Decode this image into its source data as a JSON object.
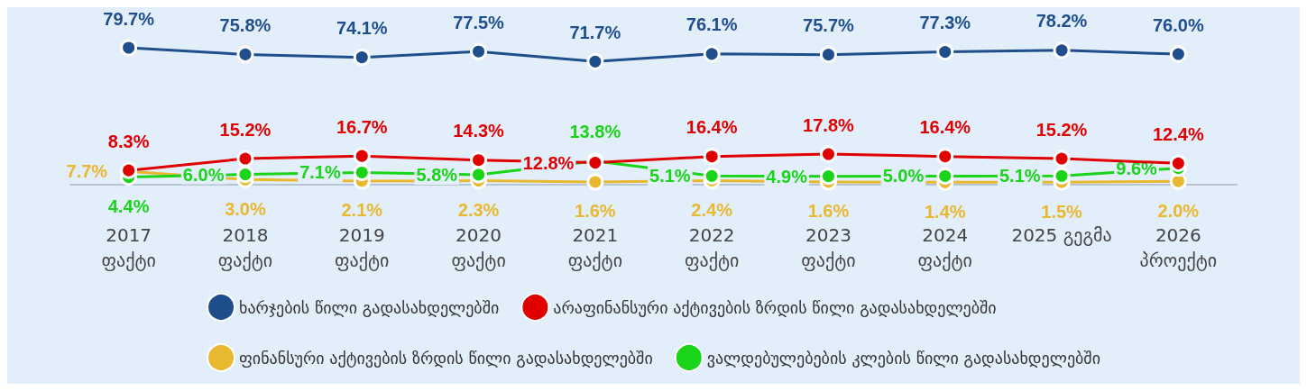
{
  "chart_data": {
    "type": "line",
    "categories": [
      "2017\nფაქტი",
      "2018\nფაქტი",
      "2019\nფაქტი",
      "2020\nფაქტი",
      "2021\nფაქტი",
      "2022\nფაქტი",
      "2023\nფაქტი",
      "2024\nფაქტი",
      "2025 გეგმა",
      "2026\nპროექტი"
    ],
    "series": [
      {
        "name": "ხარჯების წილი გადასახდელებში",
        "color": "#1f4e8c",
        "values": [
          79.7,
          75.8,
          74.1,
          77.5,
          71.7,
          76.1,
          75.7,
          77.3,
          78.2,
          76.0
        ],
        "value_labels": [
          "79.7%",
          "75.8%",
          "74.1%",
          "77.5%",
          "71.7%",
          "76.1%",
          "75.7%",
          "77.3%",
          "78.2%",
          "76.0%"
        ]
      },
      {
        "name": "არაფინანსური აქტივების ზრდის წილი გადასახდელებში",
        "color": "#e00000",
        "values": [
          8.3,
          15.2,
          16.7,
          14.3,
          12.8,
          16.4,
          17.8,
          16.4,
          15.2,
          12.4
        ],
        "value_labels": [
          "8.3%",
          "15.2%",
          "16.7%",
          "14.3%",
          "12.8%",
          "16.4%",
          "17.8%",
          "16.4%",
          "15.2%",
          "12.4%"
        ]
      },
      {
        "name": "ფინანსური აქტივების ზრდის წილი გადასახდელებში",
        "color": "#e8b830",
        "values": [
          7.7,
          3.0,
          2.1,
          2.3,
          1.6,
          2.4,
          1.6,
          1.4,
          1.5,
          2.0
        ],
        "value_labels": [
          "7.7%",
          "3.0%",
          "2.1%",
          "2.3%",
          "1.6%",
          "2.4%",
          "1.6%",
          "1.4%",
          "1.5%",
          "2.0%"
        ]
      },
      {
        "name": "ვალდებულებების კლების წილი გადასახდელებში",
        "color": "#19d419",
        "values": [
          4.4,
          6.0,
          7.1,
          5.8,
          13.8,
          5.1,
          4.9,
          5.0,
          5.1,
          9.6
        ],
        "value_labels": [
          "4.4%",
          "6.0%",
          "7.1%",
          "5.8%",
          "13.8%",
          "5.1%",
          "4.9%",
          "5.0%",
          "5.1%",
          "9.6%"
        ]
      }
    ],
    "legend": "bottom",
    "marker": "circle",
    "grid": false,
    "tick_labels": "x"
  }
}
